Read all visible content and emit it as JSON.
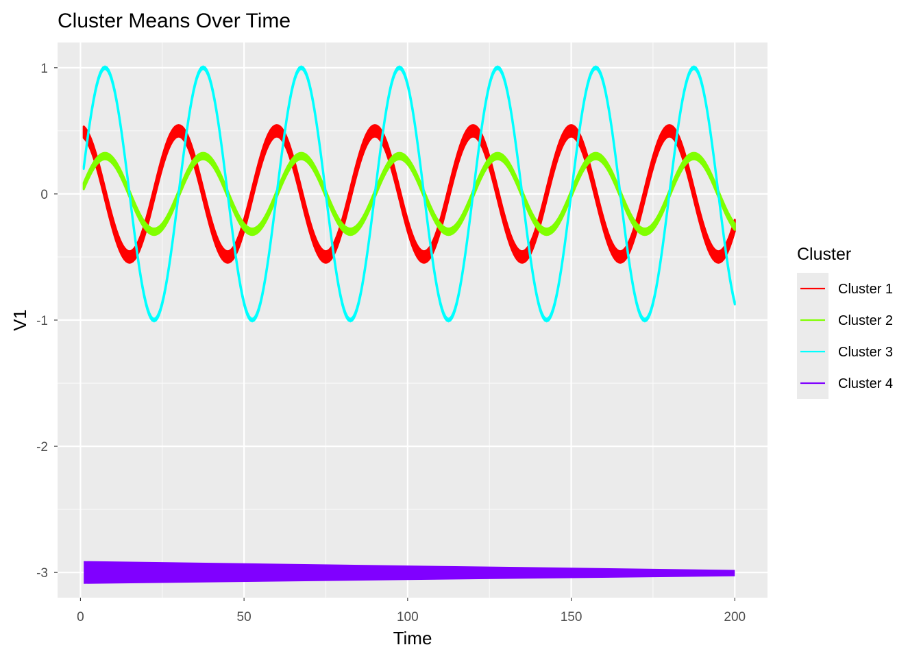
{
  "chart_data": {
    "type": "line",
    "title": "Cluster Means Over Time",
    "xlabel": "Time",
    "ylabel": "V1",
    "xlim": [
      -7,
      210
    ],
    "ylim": [
      -3.2,
      1.2
    ],
    "xticks": [
      0,
      50,
      100,
      150,
      200
    ],
    "yticks": [
      1,
      0,
      -1,
      -2,
      -3
    ],
    "xtick_labels": [
      "0",
      "50",
      "100",
      "150",
      "200"
    ],
    "ytick_labels": [
      "1",
      "0",
      "-1",
      "-2",
      "-3"
    ],
    "grid": true,
    "panel_background": "#ebebeb",
    "legend": {
      "title": "Cluster",
      "position": "right",
      "entries": [
        "Cluster 1",
        "Cluster 2",
        "Cluster 3",
        "Cluster 4"
      ]
    },
    "series": [
      {
        "name": "Cluster 1",
        "color": "#ff0000",
        "x_range": [
          1,
          200
        ],
        "form": "0.5 * cos(2*pi*t/30)",
        "band_halfwidth": 0.045
      },
      {
        "name": "Cluster 2",
        "color": "#80ff00",
        "x_range": [
          1,
          200
        ],
        "form": "0.3 * sin(2*pi*t/30)",
        "band_halfwidth": 0.025
      },
      {
        "name": "Cluster 3",
        "color": "#00ffff",
        "x_range": [
          1,
          200
        ],
        "form": "sin(2*pi*t/30)",
        "band_halfwidth": 0.01
      },
      {
        "name": "Cluster 4",
        "color": "#8000ff",
        "x_range": [
          1,
          200
        ],
        "form": "-3 (tapering band)",
        "band_start": [
          -3.09,
          -2.91
        ],
        "band_end": [
          -3.03,
          -2.98
        ]
      }
    ]
  }
}
